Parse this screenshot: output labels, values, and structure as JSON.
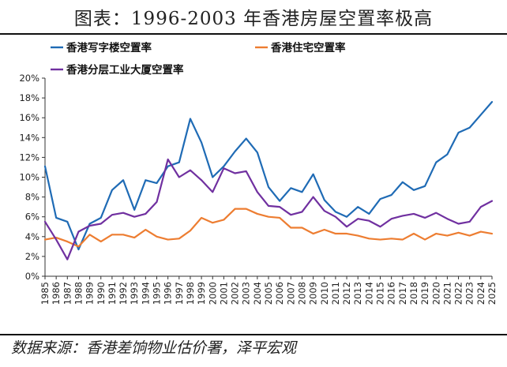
{
  "header": {
    "title": "图表：1996-2003 年香港房屋空置率极高"
  },
  "footer": {
    "source": "数据来源：香港差饷物业估价署，泽平宏观"
  },
  "colors": {
    "office": "#1f6bb5",
    "residential": "#ed7d31",
    "industrial": "#7030a0"
  },
  "chart_data": {
    "type": "line",
    "title": "",
    "xlabel": "",
    "ylabel": "",
    "ylim": [
      0,
      20
    ],
    "yticks": [
      0,
      2,
      4,
      6,
      8,
      10,
      12,
      14,
      16,
      18,
      20
    ],
    "ytick_labels": [
      "0%",
      "2%",
      "4%",
      "6%",
      "8%",
      "10%",
      "12%",
      "14%",
      "16%",
      "18%",
      "20%"
    ],
    "xlim": [
      1985,
      2025
    ],
    "xticks": [
      1985,
      1986,
      1987,
      1988,
      1989,
      1990,
      1991,
      1992,
      1993,
      1994,
      1995,
      1996,
      1997,
      1998,
      1999,
      2000,
      2001,
      2002,
      2003,
      2004,
      2005,
      2006,
      2007,
      2008,
      2009,
      2010,
      2011,
      2012,
      2013,
      2014,
      2015,
      2016,
      2017,
      2018,
      2019,
      2020,
      2021,
      2022,
      2023,
      2024,
      2025
    ],
    "grid": false,
    "legend": "top-left",
    "series": [
      {
        "name": "香港写字楼空置率",
        "color": "#1f6bb5",
        "x": [
          1985,
          1986,
          1987,
          1988,
          1989,
          1990,
          1991,
          1992,
          1993,
          1994,
          1995,
          1996,
          1997,
          1998,
          1999,
          2000,
          2001,
          2002,
          2003,
          2004,
          2005,
          2006,
          2007,
          2008,
          2009,
          2010,
          2011,
          2012,
          2013,
          2014,
          2015,
          2016,
          2017,
          2018,
          2019,
          2020,
          2021,
          2022,
          2023,
          2024,
          2025
        ],
        "values": [
          11.1,
          5.9,
          5.5,
          2.7,
          5.3,
          5.9,
          8.7,
          9.7,
          6.7,
          9.7,
          9.4,
          11.1,
          11.5,
          15.9,
          13.5,
          10.0,
          11.1,
          12.6,
          13.9,
          12.5,
          9.0,
          7.6,
          8.9,
          8.5,
          10.3,
          7.7,
          6.5,
          6.0,
          7.0,
          6.3,
          7.8,
          8.2,
          9.5,
          8.7,
          9.1,
          11.5,
          12.3,
          14.5,
          15.0,
          16.3,
          17.6
        ]
      },
      {
        "name": "香港住宅空置率",
        "color": "#ed7d31",
        "x": [
          1985,
          1986,
          1987,
          1988,
          1989,
          1990,
          1991,
          1992,
          1993,
          1994,
          1995,
          1996,
          1997,
          1998,
          1999,
          2000,
          2001,
          2002,
          2003,
          2004,
          2005,
          2006,
          2007,
          2008,
          2009,
          2010,
          2011,
          2012,
          2013,
          2014,
          2015,
          2016,
          2017,
          2018,
          2019,
          2020,
          2021,
          2022,
          2023,
          2024,
          2025
        ],
        "values": [
          3.7,
          3.9,
          3.5,
          3.0,
          4.2,
          3.5,
          4.2,
          4.2,
          3.9,
          4.7,
          4.0,
          3.7,
          3.8,
          4.6,
          5.9,
          5.4,
          5.7,
          6.8,
          6.8,
          6.3,
          6.0,
          5.9,
          4.9,
          4.9,
          4.3,
          4.7,
          4.3,
          4.3,
          4.1,
          3.8,
          3.7,
          3.8,
          3.7,
          4.3,
          3.7,
          4.3,
          4.1,
          4.4,
          4.1,
          4.5,
          4.3
        ]
      },
      {
        "name": "香港分层工业大厦空置率",
        "color": "#7030a0",
        "x": [
          1985,
          1986,
          1987,
          1988,
          1989,
          1990,
          1991,
          1992,
          1993,
          1994,
          1995,
          1996,
          1997,
          1998,
          1999,
          2000,
          2001,
          2002,
          2003,
          2004,
          2005,
          2006,
          2007,
          2008,
          2009,
          2010,
          2011,
          2012,
          2013,
          2014,
          2015,
          2016,
          2017,
          2018,
          2019,
          2020,
          2021,
          2022,
          2023,
          2024,
          2025
        ],
        "values": [
          5.5,
          3.7,
          1.7,
          4.5,
          5.1,
          5.3,
          6.2,
          6.4,
          6.0,
          6.3,
          7.5,
          11.8,
          10.0,
          10.7,
          9.7,
          8.5,
          10.9,
          10.4,
          10.6,
          8.5,
          7.1,
          7.0,
          6.2,
          6.5,
          8.0,
          6.6,
          6.0,
          5.0,
          5.8,
          5.6,
          5.0,
          5.8,
          6.1,
          6.3,
          5.9,
          6.4,
          5.8,
          5.3,
          5.5,
          7.0,
          7.6
        ]
      }
    ]
  }
}
